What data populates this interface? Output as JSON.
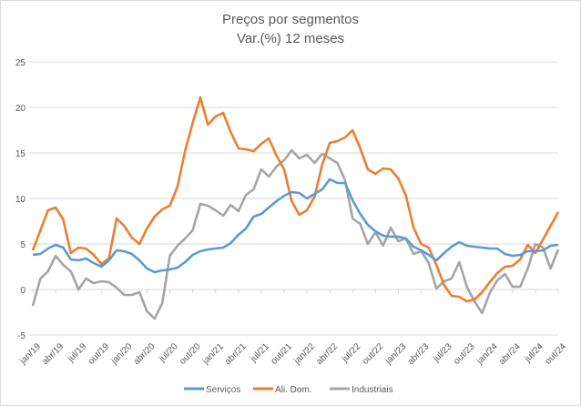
{
  "chart_data": {
    "type": "line",
    "title": "Preços por segmentos",
    "subtitle": "Var.(%) 12 meses",
    "xlabel": "",
    "ylabel": "",
    "ylim": [
      -5,
      25
    ],
    "yticks": [
      "-5",
      "0",
      "5",
      "10",
      "15",
      "20",
      "25"
    ],
    "grid": true,
    "legend_position": "bottom",
    "x_start": "jan/19",
    "x_end": "out/24",
    "xtick_labels": [
      "jan/19",
      "abr/19",
      "jul/19",
      "out/19",
      "jan/20",
      "abr/20",
      "jul/20",
      "out/20",
      "jan/21",
      "abr/21",
      "jul/21",
      "out/21",
      "jan/22",
      "abr/22",
      "jul/22",
      "out/22",
      "jan/23",
      "abr/23",
      "jul/23",
      "out/23",
      "jan/24",
      "abr/24",
      "jul/24",
      "out/24"
    ],
    "series": [
      {
        "name": "Serviços",
        "color": "#5B9BD5",
        "values": [
          3.8,
          3.9,
          4.5,
          4.9,
          4.6,
          3.3,
          3.2,
          3.4,
          2.9,
          2.5,
          3.2,
          4.3,
          4.2,
          3.9,
          3.2,
          2.3,
          1.9,
          2.1,
          2.2,
          2.4,
          3.0,
          3.8,
          4.2,
          4.4,
          4.5,
          4.6,
          5.1,
          6.0,
          6.7,
          8.0,
          8.3,
          9.0,
          9.7,
          10.3,
          10.7,
          10.6,
          10.0,
          10.5,
          11.0,
          12.1,
          11.7,
          11.7,
          9.8,
          8.3,
          7.1,
          6.4,
          5.9,
          5.8,
          5.8,
          5.6,
          4.7,
          4.3,
          3.8,
          3.2,
          4.0,
          4.7,
          5.2,
          4.8,
          4.7,
          4.6,
          4.5,
          4.5,
          3.9,
          3.7,
          3.8,
          4.2,
          4.2,
          4.3,
          4.8,
          4.9
        ]
      },
      {
        "name": "Ali. Dom.",
        "color": "#ED7D31",
        "values": [
          4.3,
          6.5,
          8.7,
          9.0,
          7.7,
          4.0,
          4.6,
          4.5,
          3.8,
          2.8,
          3.4,
          7.8,
          7.0,
          5.7,
          5.0,
          6.7,
          8.0,
          8.8,
          9.2,
          11.3,
          15.2,
          18.3,
          21.1,
          18.1,
          19.0,
          19.4,
          17.3,
          15.5,
          15.4,
          15.2,
          16.0,
          16.6,
          14.7,
          13.2,
          9.7,
          8.2,
          8.7,
          10.2,
          13.7,
          16.1,
          16.3,
          16.7,
          17.5,
          15.5,
          13.2,
          12.7,
          13.3,
          13.2,
          12.2,
          10.3,
          6.8,
          5.0,
          4.6,
          2.7,
          0.5,
          -0.7,
          -0.8,
          -1.3,
          -1.1,
          -0.3,
          0.8,
          1.8,
          2.5,
          2.6,
          3.3,
          4.9,
          4.0,
          5.5,
          7.0,
          8.5
        ]
      },
      {
        "name": "Industriais",
        "color": "#A5A5A5",
        "values": [
          -1.8,
          1.2,
          2.0,
          3.7,
          2.7,
          2.0,
          0.0,
          1.2,
          0.7,
          0.9,
          0.8,
          0.2,
          -0.6,
          -0.6,
          -0.3,
          -2.4,
          -3.2,
          -1.5,
          3.7,
          4.8,
          5.6,
          6.5,
          9.4,
          9.2,
          8.7,
          8.1,
          9.3,
          8.6,
          10.4,
          11.0,
          13.2,
          12.4,
          13.5,
          14.2,
          15.3,
          14.4,
          14.8,
          13.9,
          14.9,
          14.4,
          13.9,
          12.0,
          7.8,
          7.2,
          5.0,
          6.3,
          4.8,
          6.8,
          5.3,
          5.6,
          3.9,
          4.2,
          2.9,
          0.1,
          0.9,
          1.2,
          3.0,
          0.3,
          -1.3,
          -2.6,
          -0.4,
          1.0,
          1.7,
          0.3,
          0.3,
          2.3,
          5.0,
          4.6,
          2.3,
          4.4
        ]
      }
    ]
  }
}
